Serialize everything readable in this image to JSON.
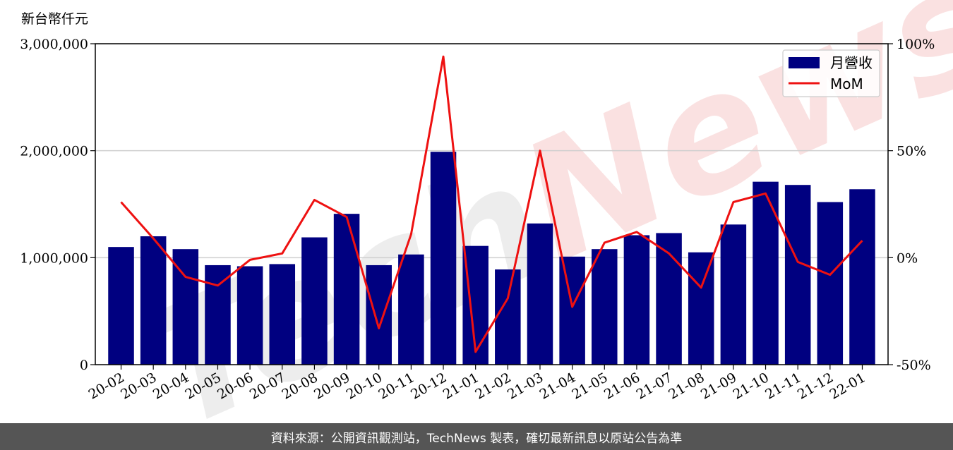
{
  "chart_data": {
    "type": "bar",
    "y_unit_label": "新台幣仟元",
    "categories": [
      "20-02",
      "20-03",
      "20-04",
      "20-05",
      "20-06",
      "20-07",
      "20-08",
      "20-09",
      "20-10",
      "20-11",
      "20-12",
      "21-01",
      "21-02",
      "21-03",
      "21-04",
      "21-05",
      "21-06",
      "21-07",
      "21-08",
      "21-09",
      "21-10",
      "21-11",
      "21-12",
      "22-01"
    ],
    "series": [
      {
        "name": "月營收",
        "type": "bar",
        "axis": "left",
        "color": "#000080",
        "values": [
          1100000,
          1200000,
          1080000,
          930000,
          920000,
          940000,
          1190000,
          1410000,
          930000,
          1030000,
          1990000,
          1110000,
          890000,
          1320000,
          1010000,
          1080000,
          1210000,
          1230000,
          1050000,
          1310000,
          1710000,
          1680000,
          1520000,
          1640000
        ]
      },
      {
        "name": "MoM",
        "type": "line",
        "axis": "right",
        "color": "#ee1111",
        "values": [
          26,
          9,
          -9,
          -13,
          -1,
          2,
          27,
          19,
          -33,
          11,
          94,
          -44,
          -19,
          50,
          -23,
          7,
          12,
          2,
          -14,
          26,
          30,
          -2,
          -8,
          8
        ]
      }
    ],
    "left_axis": {
      "ylim": [
        0,
        3000000
      ],
      "ticks": [
        0,
        1000000,
        2000000,
        3000000
      ],
      "tick_labels": [
        "0",
        "1,000,000",
        "2,000,000",
        "3,000,000"
      ]
    },
    "right_axis": {
      "ylim": [
        -50,
        100
      ],
      "ticks": [
        -50,
        0,
        50,
        100
      ],
      "tick_labels": [
        "-50%",
        "0%",
        "50%",
        "100%"
      ]
    },
    "grid": "horizontal",
    "legend_position": "top-right",
    "watermark": "TechNews"
  },
  "footer": {
    "text": "資料來源：公開資訊觀測站，TechNews 製表，確切最新訊息以原站公告為準"
  }
}
